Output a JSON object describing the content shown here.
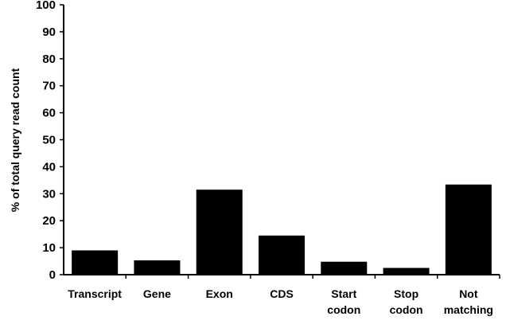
{
  "chart_data": {
    "type": "bar",
    "title": "",
    "xlabel": "",
    "ylabel": "% of total query  read count",
    "ylim": [
      0,
      100
    ],
    "yticks": [
      0,
      10,
      20,
      30,
      40,
      50,
      60,
      70,
      80,
      90,
      100
    ],
    "categories": [
      [
        "Transcript"
      ],
      [
        "Gene"
      ],
      [
        "Exon"
      ],
      [
        "CDS"
      ],
      [
        "Start",
        "codon"
      ],
      [
        "Stop",
        "codon"
      ],
      [
        "Not",
        "matching"
      ]
    ],
    "values": [
      9,
      5.3,
      31.5,
      14.5,
      4.8,
      2.5,
      33.4
    ],
    "bar_color": "#000000",
    "grid": false,
    "legend": "none"
  }
}
